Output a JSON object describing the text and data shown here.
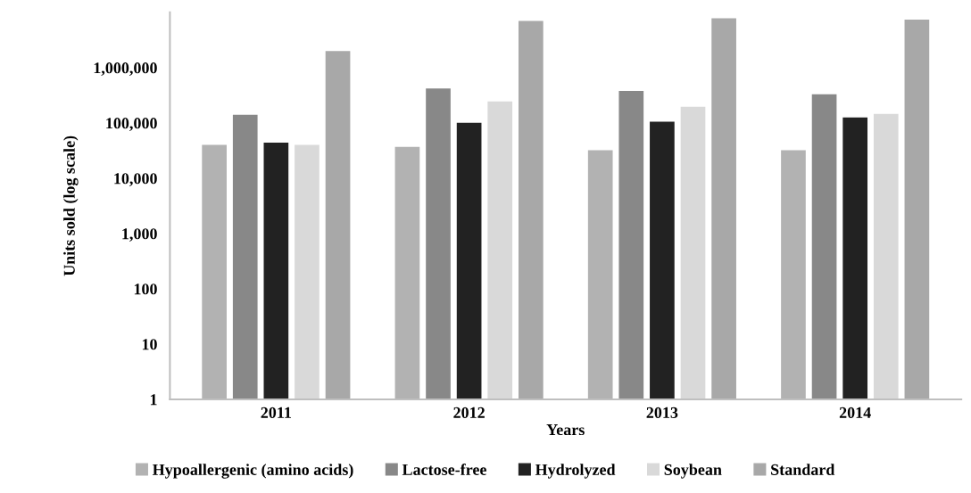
{
  "chart_data": {
    "type": "bar",
    "xlabel": "Years",
    "ylabel": "Units sold (log scale)",
    "log": true,
    "categories": [
      "2011",
      "2012",
      "2013",
      "2014"
    ],
    "series": [
      {
        "name": "Hypoallergenic (amino acids)",
        "color": "#b2b2b2",
        "values": [
          40000,
          37000,
          32000,
          32000
        ]
      },
      {
        "name": "Lactose-free",
        "color": "#888888",
        "values": [
          140000,
          420000,
          380000,
          330000
        ]
      },
      {
        "name": "Hydrolyzed",
        "color": "#222222",
        "values": [
          44000,
          100000,
          105000,
          125000
        ]
      },
      {
        "name": "Soybean",
        "color": "#d9d9d9",
        "values": [
          40000,
          245000,
          195000,
          145000
        ]
      },
      {
        "name": "Standard",
        "color": "#a8a8a8",
        "values": [
          2000000,
          7000000,
          7800000,
          7400000
        ]
      }
    ],
    "ylim": [
      1,
      10000000
    ],
    "yticks": [
      {
        "value": 1,
        "label": "1"
      },
      {
        "value": 10,
        "label": "10"
      },
      {
        "value": 100,
        "label": "100"
      },
      {
        "value": 1000,
        "label": "1,000"
      },
      {
        "value": 10000,
        "label": "10,000"
      },
      {
        "value": 100000,
        "label": "100,000"
      },
      {
        "value": 1000000,
        "label": "1,000,000"
      }
    ],
    "grid": false,
    "legend": "bottom"
  }
}
